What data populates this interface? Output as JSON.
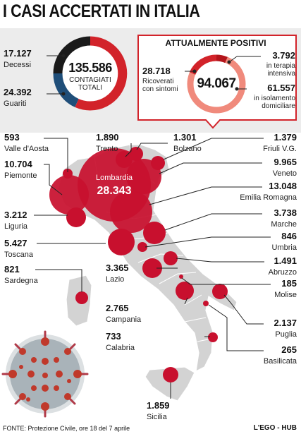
{
  "title": "I CASI ACCERTATI IN ITALIA",
  "summary": {
    "deaths": {
      "value": "17.127",
      "label": "Decessi"
    },
    "recovered": {
      "value": "24.392",
      "label": "Guariti"
    },
    "total": {
      "value": "135.586",
      "label_line1": "CONTAGIATI",
      "label_line2": "TOTALI"
    }
  },
  "positives": {
    "title": "ATTUALMENTE POSITIVI",
    "total": "94.067",
    "hospitalized": {
      "value": "28.718",
      "label_line1": "Ricoverati",
      "label_line2": "con sintomi"
    },
    "icu": {
      "value": "3.792",
      "label_line1": "in terapia",
      "label_line2": "intensiva"
    },
    "home_isolation": {
      "value": "61.557",
      "label_line1": "in isolamento",
      "label_line2": "domiciliare"
    }
  },
  "regions": {
    "lombardia": {
      "name": "Lombardia",
      "value": "28.343"
    },
    "valle_daosta": {
      "name": "Valle d'Aosta",
      "value": "593"
    },
    "piemonte": {
      "name": "Piemonte",
      "value": "10.704"
    },
    "liguria": {
      "name": "Liguria",
      "value": "3.212"
    },
    "toscana": {
      "name": "Toscana",
      "value": "5.427"
    },
    "sardegna": {
      "name": "Sardegna",
      "value": "821"
    },
    "lazio": {
      "name": "Lazio",
      "value": "3.365"
    },
    "campania": {
      "name": "Campania",
      "value": "2.765"
    },
    "calabria": {
      "name": "Calabria",
      "value": "733"
    },
    "sicilia": {
      "name": "Sicilia",
      "value": "1.859"
    },
    "trento": {
      "name": "Trento",
      "value": "1.890"
    },
    "bolzano": {
      "name": "Bolzano",
      "value": "1.301"
    },
    "friuli": {
      "name": "Friuli V.G.",
      "value": "1.379"
    },
    "veneto": {
      "name": "Veneto",
      "value": "9.965"
    },
    "emilia": {
      "name": "Emilia Romagna",
      "value": "13.048"
    },
    "marche": {
      "name": "Marche",
      "value": "3.738"
    },
    "umbria": {
      "name": "Umbria",
      "value": "846"
    },
    "abruzzo": {
      "name": "Abruzzo",
      "value": "1.491"
    },
    "molise": {
      "name": "Molise",
      "value": "185"
    },
    "puglia": {
      "name": "Puglia",
      "value": "2.137"
    },
    "basilicata": {
      "name": "Basilicata",
      "value": "265"
    }
  },
  "footer": {
    "source": "FONTE: Protezione Civile, ore 18 del 7 aprile",
    "brand": "L'EGO - HUB"
  },
  "colors": {
    "red": "#d2232a",
    "dark_red": "#b3141b",
    "salmon": "#f08a7c",
    "navy": "#1f4e79",
    "black": "#1a1a1a",
    "map": "#d3d3d3"
  }
}
